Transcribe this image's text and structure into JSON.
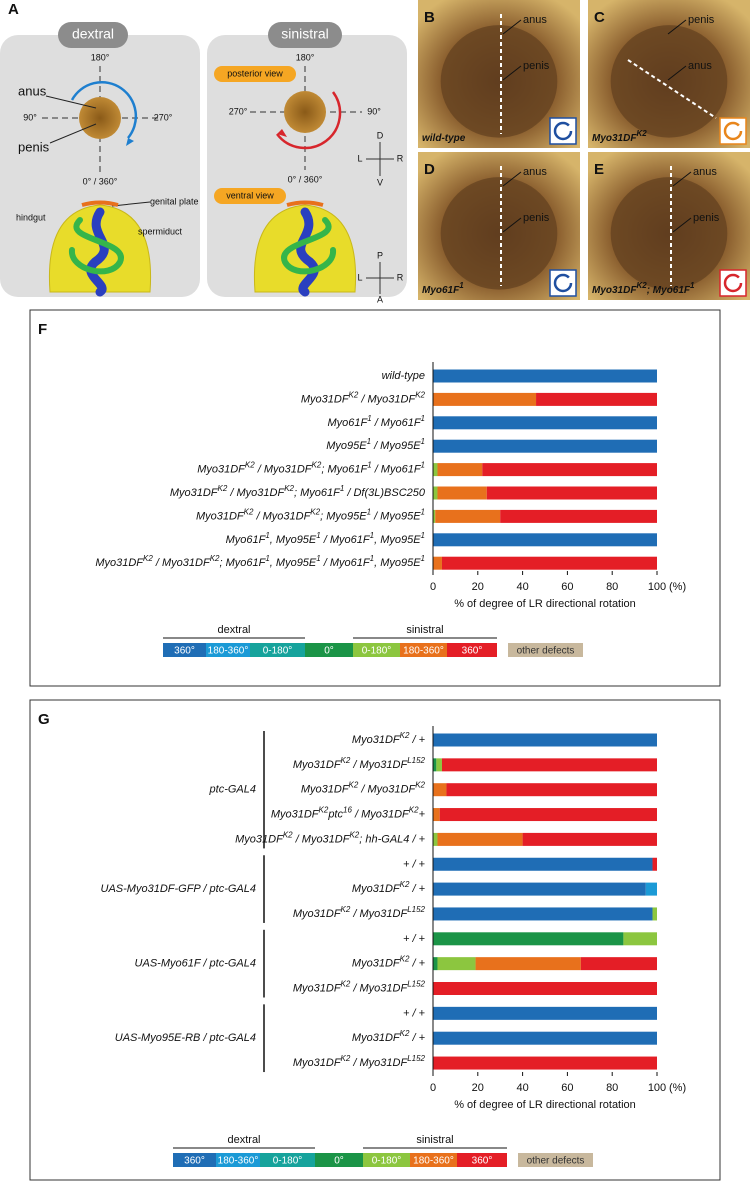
{
  "panel_a": {
    "letter": "A",
    "dextral": {
      "title": "dextral",
      "top": "180°",
      "left": "90°",
      "right": "270°",
      "bottom": "0° / 360°",
      "anus": "anus",
      "penis": "penis",
      "genital_plate": "genital plate",
      "hindgut": "hindgut",
      "spermiduct": "spermiduct"
    },
    "sinistral": {
      "title": "sinistral",
      "top": "180°",
      "left": "270°",
      "right": "90°",
      "bottom": "0° / 360°",
      "posterior_view": "posterior view",
      "ventral_view": "ventral view",
      "compass_1": {
        "up": "D",
        "down": "V",
        "left": "L",
        "right": "R"
      },
      "compass_2": {
        "up": "P",
        "down": "A",
        "left": "L",
        "right": "R"
      }
    }
  },
  "photos": [
    {
      "letter": "B",
      "caption": [
        "wild-type"
      ],
      "labels": [
        "anus",
        "penis"
      ]
    },
    {
      "letter": "C",
      "caption": [
        "Myo31DF",
        "K2"
      ],
      "labels": [
        "penis",
        "anus"
      ]
    },
    {
      "letter": "D",
      "caption": [
        "Myo61F",
        "1"
      ],
      "labels": [
        "anus",
        "penis"
      ]
    },
    {
      "letter": "E",
      "caption": [
        "Myo31DF",
        "K2",
        "; Myo61F",
        "1"
      ],
      "labels": [
        "anus",
        "penis"
      ]
    }
  ],
  "chart_data": [
    {
      "type": "bar",
      "panel": "F",
      "orientation": "horizontal",
      "stacked": true,
      "categories": [
        [
          "wild-type"
        ],
        [
          "Myo31DF",
          "K2",
          " / Myo31DF",
          "K2"
        ],
        [
          "Myo61F",
          "1",
          " / Myo61F",
          "1"
        ],
        [
          "Myo95E",
          "1",
          " / Myo95E",
          "1"
        ],
        [
          "Myo31DF",
          "K2",
          " / Myo31DF",
          "K2",
          "; Myo61F",
          "1",
          " / Myo61F",
          "1"
        ],
        [
          "Myo31DF",
          "K2",
          " / Myo31DF",
          "K2",
          "; Myo61F",
          "1",
          " / Df(3L)BSC250"
        ],
        [
          "Myo31DF",
          "K2",
          " / Myo31DF",
          "K2",
          "; Myo95E",
          "1",
          " / Myo95E",
          "1"
        ],
        [
          "Myo61F",
          "1",
          ", Myo95E",
          "1",
          " / Myo61F",
          "1",
          ", Myo95E",
          "1"
        ],
        [
          "Myo31DF",
          "K2",
          " / Myo31DF",
          "K2",
          "; Myo61F",
          "1",
          ", Myo95E",
          "1",
          " / Myo61F",
          "1",
          ", Myo95E",
          "1"
        ]
      ],
      "series": [
        {
          "name": "360°",
          "color": "#1f6db5",
          "values": [
            100,
            0,
            100,
            100,
            0,
            0,
            0,
            100,
            0
          ]
        },
        {
          "name": "180-360°",
          "color": "#1b9ad6",
          "values": [
            0,
            0,
            0,
            0,
            0,
            0,
            0,
            0,
            0
          ]
        },
        {
          "name": "0-180°",
          "color": "#16a39c",
          "values": [
            0,
            0,
            0,
            0,
            0,
            0,
            0,
            0,
            0
          ]
        },
        {
          "name": "0°",
          "color": "#1b9447",
          "values": [
            0,
            0,
            0,
            0,
            0,
            0,
            0,
            0,
            0
          ]
        },
        {
          "name": "0-180°",
          "color": "#8cc63f",
          "values": [
            0,
            0,
            0,
            0,
            2,
            2,
            1,
            0,
            0
          ]
        },
        {
          "name": "180-360°",
          "color": "#e8711c",
          "values": [
            0,
            46,
            0,
            0,
            20,
            22,
            29,
            0,
            4
          ]
        },
        {
          "name": "360°",
          "color": "#e41e26",
          "values": [
            0,
            54,
            0,
            0,
            78,
            76,
            70,
            0,
            96
          ]
        },
        {
          "name": "other defects",
          "color": "#c8b89d",
          "values": [
            0,
            0,
            0,
            0,
            0,
            0,
            0,
            0,
            0
          ]
        }
      ],
      "legend_groups": [
        "dextral",
        "sinistral"
      ],
      "xlim": [
        0,
        100
      ],
      "xticks": [
        0,
        20,
        40,
        60,
        80,
        100
      ],
      "x_unit": "(%)",
      "x_label": "% of degree of LR directional rotation"
    },
    {
      "type": "bar",
      "panel": "G",
      "orientation": "horizontal",
      "stacked": true,
      "groups": [
        {
          "label": "ptc-GAL4",
          "categories": [
            [
              "Myo31DF",
              "K2",
              " / +"
            ],
            [
              "Myo31DF",
              "K2",
              " / Myo31DF",
              "L152"
            ],
            [
              "Myo31DF",
              "K2",
              " / Myo31DF",
              "K2"
            ],
            [
              "Myo31DF",
              "K2",
              "ptc",
              "16",
              " / Myo31DF",
              "K2",
              "+"
            ],
            [
              "Myo31DF",
              "K2",
              " / Myo31DF",
              "K2",
              "; hh-GAL4 / +"
            ]
          ]
        },
        {
          "label": "UAS-Myo31DF-GFP / ptc-GAL4",
          "categories": [
            [
              "+ / +"
            ],
            [
              "Myo31DF",
              "K2",
              " / +"
            ],
            [
              "Myo31DF",
              "K2",
              " / Myo31DF",
              "L152"
            ]
          ]
        },
        {
          "label": "UAS-Myo61F / ptc-GAL4",
          "categories": [
            [
              "+ / +"
            ],
            [
              "Myo31DF",
              "K2",
              " / +"
            ],
            [
              "Myo31DF",
              "K2",
              " / Myo31DF",
              "L152"
            ]
          ]
        },
        {
          "label": "UAS-Myo95E-RB / ptc-GAL4",
          "categories": [
            [
              "+ / +"
            ],
            [
              "Myo31DF",
              "K2",
              " / +"
            ],
            [
              "Myo31DF",
              "K2",
              " / Myo31DF",
              "L152"
            ]
          ]
        }
      ],
      "series": [
        {
          "name": "360°",
          "color": "#1f6db5",
          "values": [
            100,
            0,
            0,
            0,
            0,
            98,
            95,
            98,
            0,
            0,
            0,
            100,
            100,
            0
          ]
        },
        {
          "name": "180-360°",
          "color": "#1b9ad6",
          "values": [
            0,
            0,
            0,
            0,
            0,
            0,
            5,
            0,
            0,
            0,
            0,
            0,
            0,
            0
          ]
        },
        {
          "name": "0-180°",
          "color": "#16a39c",
          "values": [
            0,
            0,
            0,
            0,
            0,
            0,
            0,
            0,
            0,
            0,
            0,
            0,
            0,
            0
          ]
        },
        {
          "name": "0°",
          "color": "#1b9447",
          "values": [
            0,
            1.5,
            0,
            0,
            0,
            0,
            0,
            0,
            85,
            2,
            0,
            0,
            0,
            0
          ]
        },
        {
          "name": "0-180°",
          "color": "#8cc63f",
          "values": [
            0,
            2.5,
            0,
            0,
            2,
            0,
            0,
            2,
            15,
            17,
            0,
            0,
            0,
            0
          ]
        },
        {
          "name": "180-360°",
          "color": "#e8711c",
          "values": [
            0,
            0,
            6,
            3,
            38,
            0,
            0,
            0,
            0,
            47,
            0,
            0,
            0,
            0
          ]
        },
        {
          "name": "360°",
          "color": "#e41e26",
          "values": [
            0,
            96,
            94,
            97,
            60,
            2,
            0,
            0,
            0,
            34,
            100,
            0,
            0,
            100
          ]
        },
        {
          "name": "other defects",
          "color": "#c8b89d",
          "values": [
            0,
            0,
            0,
            0,
            0,
            0,
            0,
            0,
            0,
            0,
            0,
            0,
            0,
            0
          ]
        }
      ],
      "legend_groups": [
        "dextral",
        "sinistral"
      ],
      "xlim": [
        0,
        100
      ],
      "xticks": [
        0,
        20,
        40,
        60,
        80,
        100
      ],
      "x_unit": "(%)",
      "x_label": "% of degree of LR directional rotation"
    }
  ]
}
